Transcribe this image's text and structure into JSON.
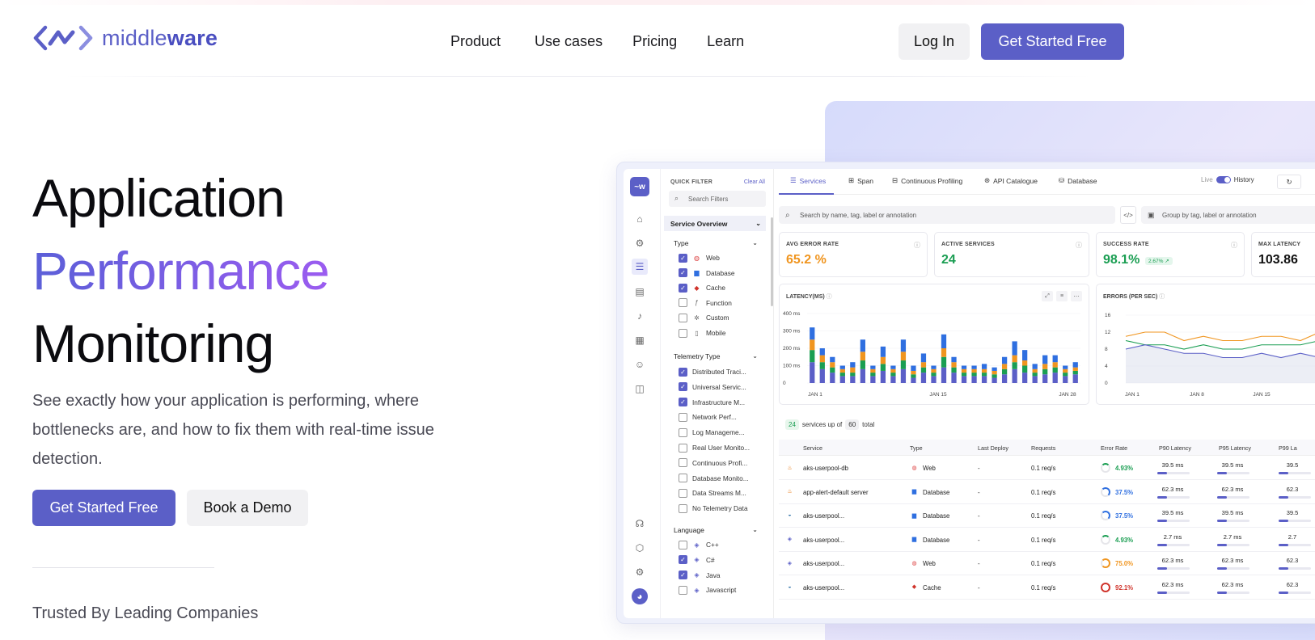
{
  "brand": {
    "name_light": "middle",
    "name_bold": "ware",
    "accent": "#5b5fc7"
  },
  "nav": {
    "items": [
      "Product",
      "Use cases",
      "Pricing",
      "Learn"
    ],
    "login": "Log In",
    "cta": "Get Started Free"
  },
  "hero": {
    "line1": "Application",
    "line2": "Performance",
    "line3": "Monitoring",
    "subtitle": "See exactly how your application is performing, where bottlenecks are, and how to fix them with real-time issue detection.",
    "cta_primary": "Get Started Free",
    "cta_secondary": "Book a Demo",
    "trusted": "Trusted By Leading Companies"
  },
  "dashboard": {
    "filter": {
      "title": "QUICK FILTER",
      "clear": "Clear All",
      "search_placeholder": "Search Filters",
      "section": "Service Overview",
      "type_label": "Type",
      "types": [
        {
          "label": "Web",
          "checked": true,
          "icon": "web-icon"
        },
        {
          "label": "Database",
          "checked": true,
          "icon": "database-icon"
        },
        {
          "label": "Cache",
          "checked": true,
          "icon": "cache-icon"
        },
        {
          "label": "Function",
          "checked": false,
          "icon": "function-icon"
        },
        {
          "label": "Custom",
          "checked": false,
          "icon": "custom-icon"
        },
        {
          "label": "Mobile",
          "checked": false,
          "icon": "mobile-icon"
        }
      ],
      "telemetry_label": "Telemetry Type",
      "telemetry": [
        {
          "label": "Distributed Traci...",
          "checked": true
        },
        {
          "label": "Universal Servic...",
          "checked": true
        },
        {
          "label": "Infrastructure M...",
          "checked": true
        },
        {
          "label": "Network Perf...",
          "checked": false
        },
        {
          "label": "Log Manageme...",
          "checked": false
        },
        {
          "label": "Real User Monito...",
          "checked": false
        },
        {
          "label": "Continuous Profi...",
          "checked": false
        },
        {
          "label": "Database Monito...",
          "checked": false
        },
        {
          "label": "Data Streams M...",
          "checked": false
        },
        {
          "label": "No Telemetry Data",
          "checked": false
        }
      ],
      "language_label": "Language",
      "languages": [
        {
          "label": "C++",
          "checked": false
        },
        {
          "label": "C#",
          "checked": true
        },
        {
          "label": "Java",
          "checked": true
        },
        {
          "label": "Javascript",
          "checked": false
        }
      ]
    },
    "tabs": [
      "Services",
      "Span",
      "Continuous Profiling",
      "API Catalogue",
      "Database"
    ],
    "live": "Live",
    "history": "History",
    "search_placeholder": "Search by name, tag, label or annotation",
    "group_placeholder": "Group by tag, label or annotation",
    "kpis": [
      {
        "label": "AVG ERROR RATE",
        "value": "65.2 %",
        "color": "#f0951f"
      },
      {
        "label": "ACTIVE SERVICES",
        "value": "24",
        "color": "#1a9e52"
      },
      {
        "label": "SUCCESS RATE",
        "value": "98.1%",
        "color": "#1a9e52",
        "pill": "2.67% ↗"
      },
      {
        "label": "MAX LATENCY",
        "value": "103.86",
        "color": "#111"
      }
    ],
    "latency_title": "LATENCY(MS)",
    "errors_title": "ERRORS (PER SEC)",
    "summary": {
      "count": "24",
      "mid": "services up of",
      "total": "60",
      "end": "total"
    },
    "columns": [
      "Service",
      "Type",
      "Last Deploy",
      "Requests",
      "Error Rate",
      "P90 Latency",
      "P95 Latency",
      "P99 La"
    ],
    "rows": [
      {
        "service": "aks-userpool-db",
        "type": "Web",
        "deploy": "-",
        "req": "0.1 req/s",
        "err": "4.93%",
        "errc": "#1a9e52",
        "p90": "39.5 ms",
        "p95": "39.5 ms",
        "p99": "39.5",
        "lang": "java"
      },
      {
        "service": "app-alert-default server",
        "type": "Database",
        "deploy": "-",
        "req": "0.1 req/s",
        "err": "37.5%",
        "errc": "#2f6fe0",
        "p90": "62.3 ms",
        "p95": "62.3 ms",
        "p99": "62.3",
        "lang": "java"
      },
      {
        "service": "aks-userpool...",
        "type": "Database",
        "deploy": "-",
        "req": "0.1 req/s",
        "err": "37.5%",
        "errc": "#2f6fe0",
        "p90": "39.5 ms",
        "p95": "39.5 ms",
        "p99": "39.5",
        "lang": "python"
      },
      {
        "service": "aks-userpool...",
        "type": "Database",
        "deploy": "-",
        "req": "0.1 req/s",
        "err": "4.93%",
        "errc": "#1a9e52",
        "p90": "2.7 ms",
        "p95": "2.7 ms",
        "p99": "2.7",
        "lang": "csharp"
      },
      {
        "service": "aks-userpool...",
        "type": "Web",
        "deploy": "-",
        "req": "0.1 req/s",
        "err": "75.0%",
        "errc": "#f0951f",
        "p90": "62.3 ms",
        "p95": "62.3 ms",
        "p99": "62.3",
        "lang": "csharp"
      },
      {
        "service": "aks-userpool...",
        "type": "Cache",
        "deploy": "-",
        "req": "0.1 req/s",
        "err": "92.1%",
        "errc": "#d0342c",
        "p90": "62.3 ms",
        "p95": "62.3 ms",
        "p99": "62.3",
        "lang": "python"
      }
    ]
  },
  "chart_data": [
    {
      "type": "bar",
      "title": "LATENCY(MS)",
      "ylim": [
        0,
        400
      ],
      "yticks": [
        "400 ms",
        "300 ms",
        "200 ms",
        "100 ms",
        "0"
      ],
      "xticks": [
        "JAN 1",
        "JAN 15",
        "JAN 28"
      ],
      "series": [
        {
          "color": "#5b5fc7",
          "values": [
            120,
            80,
            60,
            40,
            40,
            80,
            40,
            70,
            40,
            80,
            30,
            60,
            40,
            90,
            60,
            40,
            40,
            40,
            30,
            50,
            80,
            60,
            40,
            50,
            60,
            40,
            50
          ]
        },
        {
          "color": "#1a9e52",
          "values": [
            70,
            40,
            30,
            20,
            20,
            50,
            20,
            40,
            20,
            50,
            20,
            30,
            20,
            60,
            30,
            20,
            20,
            20,
            20,
            30,
            40,
            40,
            20,
            30,
            30,
            20,
            20
          ]
        },
        {
          "color": "#f0951f",
          "values": [
            60,
            40,
            30,
            20,
            30,
            50,
            20,
            40,
            20,
            50,
            20,
            30,
            20,
            50,
            30,
            20,
            20,
            20,
            20,
            30,
            40,
            30,
            20,
            30,
            30,
            20,
            20
          ]
        },
        {
          "color": "#2f6fe0",
          "values": [
            70,
            40,
            30,
            20,
            30,
            70,
            20,
            60,
            20,
            70,
            30,
            50,
            20,
            80,
            30,
            20,
            20,
            30,
            20,
            40,
            80,
            60,
            30,
            50,
            40,
            20,
            30
          ]
        }
      ]
    },
    {
      "type": "line",
      "title": "ERRORS (PER SEC)",
      "ylim": [
        0,
        16
      ],
      "yticks": [
        "16",
        "12",
        "8",
        "4",
        "0"
      ],
      "xticks": [
        "JAN 1",
        "JAN 8",
        "JAN 15"
      ],
      "series": [
        {
          "color": "#f0951f",
          "values": [
            11,
            12,
            12,
            10,
            11,
            10,
            10,
            11,
            11,
            10,
            12,
            12
          ]
        },
        {
          "color": "#1a9e52",
          "values": [
            10,
            9,
            9,
            8,
            9,
            8,
            8,
            9,
            9,
            9,
            10,
            10
          ]
        },
        {
          "color": "#5b5fc7",
          "values": [
            8,
            9,
            8,
            7,
            7,
            6,
            6,
            7,
            6,
            7,
            6,
            5
          ]
        }
      ]
    }
  ]
}
